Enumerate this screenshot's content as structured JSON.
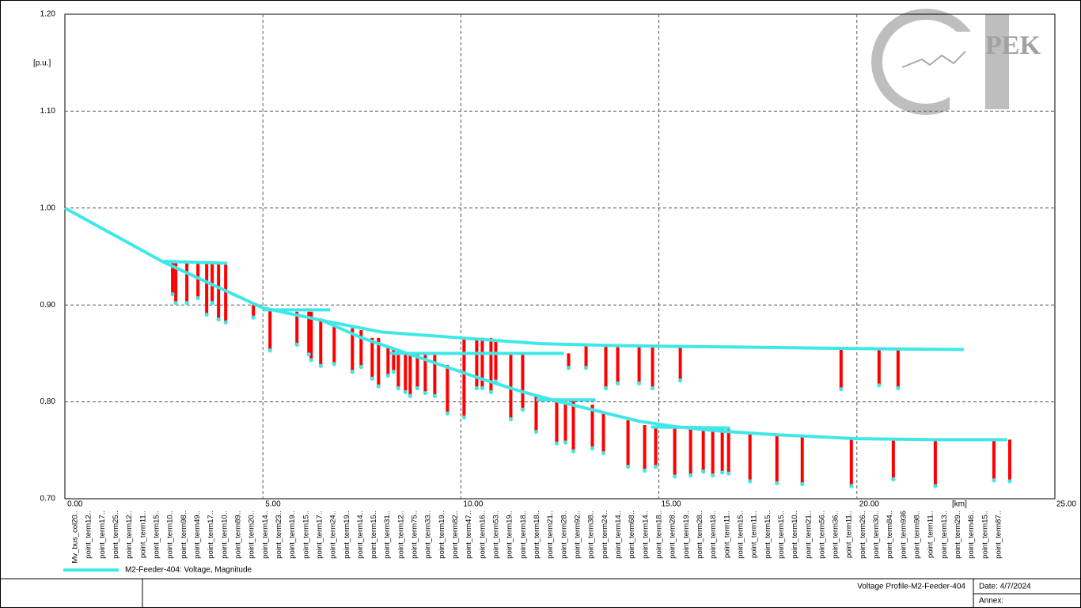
{
  "chart_data": {
    "type": "voltage-profile",
    "y_unit": "[p.u.]",
    "x_unit": "[km]",
    "xlim": [
      0,
      25
    ],
    "ylim": [
      0.7,
      1.2
    ],
    "xticks": [
      {
        "value": 0,
        "label": "0.00"
      },
      {
        "value": 5,
        "label": "5.00"
      },
      {
        "value": 10,
        "label": "10.00"
      },
      {
        "value": 15,
        "label": "15.00"
      },
      {
        "value": 20,
        "label": "20.00"
      },
      {
        "value": 25,
        "label": "25.00"
      }
    ],
    "yticks": [
      {
        "value": 0.7,
        "label": "0.70"
      },
      {
        "value": 0.8,
        "label": "0.80"
      },
      {
        "value": 0.9,
        "label": "0.90"
      },
      {
        "value": 1.0,
        "label": "1.00"
      },
      {
        "value": 1.1,
        "label": "1.10"
      },
      {
        "value": 1.2,
        "label": "1.20"
      }
    ],
    "grid": true,
    "series": [
      {
        "name": "M2-Feeder-404: Voltage, Magnitude",
        "color": "#3fe8e8",
        "x": [
          0,
          2.5,
          5.0,
          6.5,
          8.0,
          10.0,
          12.0,
          14.0,
          16.0,
          18.0,
          20.0,
          22.7,
          null,
          6.5,
          7.5,
          8.5,
          9.5,
          10.5,
          11.5,
          12.5,
          13.5,
          14.5,
          15.5,
          16.5,
          18.0,
          20.0,
          22.0,
          23.8,
          null,
          2.5,
          4.1,
          null,
          5.0,
          6.7,
          null,
          8.2,
          12.6,
          null,
          11.9,
          13.4,
          null,
          14.8,
          16.8
        ],
        "values": [
          1.0,
          0.944,
          0.897,
          0.884,
          0.872,
          0.866,
          0.86,
          0.858,
          0.857,
          0.856,
          0.855,
          0.854,
          null,
          0.884,
          0.866,
          0.852,
          0.838,
          0.824,
          0.811,
          0.8,
          0.79,
          0.78,
          0.774,
          0.77,
          0.766,
          0.762,
          0.761,
          0.761,
          null,
          0.945,
          0.943,
          null,
          0.895,
          0.895,
          null,
          0.85,
          0.85,
          null,
          0.802,
          0.802,
          null,
          0.774,
          0.773
        ]
      }
    ],
    "drops": {
      "color": "#ff0000",
      "x": [
        2.72,
        2.8,
        3.08,
        3.36,
        3.58,
        3.72,
        3.88,
        4.06,
        4.76,
        5.18,
        5.86,
        6.16,
        6.22,
        6.46,
        6.8,
        7.26,
        7.48,
        7.76,
        7.92,
        8.16,
        8.3,
        8.42,
        8.6,
        8.72,
        8.9,
        9.1,
        9.34,
        9.66,
        10.08,
        10.4,
        10.54,
        10.76,
        10.88,
        11.26,
        11.56,
        11.9,
        12.42,
        12.64,
        12.72,
        12.84,
        13.16,
        13.32,
        13.6,
        13.66,
        13.96,
        14.22,
        14.5,
        14.64,
        14.84,
        14.92,
        15.4,
        15.54,
        15.8,
        16.12,
        16.36,
        16.6,
        16.76,
        17.3,
        17.98,
        18.62,
        19.6,
        19.86,
        20.56,
        20.92,
        21.04,
        21.98,
        23.46,
        23.86
      ],
      "top": [
        0.943,
        0.943,
        0.943,
        0.943,
        0.943,
        0.943,
        0.943,
        0.943,
        0.9,
        0.896,
        0.893,
        0.893,
        0.893,
        0.886,
        0.879,
        0.876,
        0.874,
        0.866,
        0.866,
        0.858,
        0.856,
        0.852,
        0.85,
        0.85,
        0.85,
        0.85,
        0.85,
        0.838,
        0.866,
        0.866,
        0.866,
        0.866,
        0.862,
        0.85,
        0.85,
        0.806,
        0.802,
        0.802,
        0.85,
        0.802,
        0.859,
        0.797,
        0.79,
        0.858,
        0.858,
        0.781,
        0.858,
        0.776,
        0.858,
        0.775,
        0.774,
        0.857,
        0.774,
        0.773,
        0.773,
        0.772,
        0.772,
        0.768,
        0.766,
        0.765,
        0.855,
        0.763,
        0.855,
        0.762,
        0.855,
        0.761,
        0.761,
        0.761
      ],
      "bottom": [
        0.911,
        0.902,
        0.902,
        0.907,
        0.89,
        0.902,
        0.885,
        0.882,
        0.887,
        0.853,
        0.859,
        0.849,
        0.843,
        0.837,
        0.839,
        0.831,
        0.836,
        0.824,
        0.816,
        0.827,
        0.831,
        0.814,
        0.81,
        0.806,
        0.814,
        0.809,
        0.806,
        0.788,
        0.784,
        0.814,
        0.814,
        0.81,
        0.821,
        0.782,
        0.792,
        0.769,
        0.757,
        0.758,
        0.835,
        0.749,
        0.835,
        0.752,
        0.747,
        0.814,
        0.819,
        0.733,
        0.819,
        0.729,
        0.814,
        0.733,
        0.723,
        0.822,
        0.724,
        0.728,
        0.724,
        0.727,
        0.726,
        0.718,
        0.716,
        0.715,
        0.813,
        0.713,
        0.817,
        0.72,
        0.814,
        0.713,
        0.719,
        0.718
      ]
    },
    "x_labels": [
      "Mv_bus_col20..",
      "point_term12..",
      "point_term17..",
      "point_term25..",
      "point_term12..",
      "point_term11..",
      "point_term15..",
      "point_term10..",
      "point_term98..",
      "point_term49..",
      "point_term17..",
      "point_term10..",
      "point_term89..",
      "point_term20..",
      "point_term14..",
      "point_term23..",
      "point_term19..",
      "point_term15..",
      "point_term17..",
      "point_term24..",
      "point_term19..",
      "point_term14..",
      "point_term15..",
      "point_term31..",
      "point_term12..",
      "point_term75..",
      "point_term33..",
      "point_term19..",
      "point_term82..",
      "point_term47..",
      "point_term16..",
      "point_term53..",
      "point_term19..",
      "point_term18..",
      "point_term18..",
      "point_term21..",
      "point_term28..",
      "point_term92..",
      "point_term38..",
      "point_term24..",
      "point_term14..",
      "point_term68..",
      "point_term14..",
      "point_term18..",
      "point_term28..",
      "point_term19..",
      "point_term28..",
      "point_term18..",
      "point_term11..",
      "point_term15..",
      "point_term11..",
      "point_term15..",
      "point_term15..",
      "point_term10..",
      "point_term21..",
      "point_term56..",
      "point_term36..",
      "point_term11..",
      "point_term26..",
      "point_term30..",
      "point_term84..",
      "point_term936",
      "point_term98..",
      "point_term11..",
      "point_term13..",
      "point_term29..",
      "point_term46..",
      "point_term15..",
      "point_term87.."
    ]
  },
  "logo": "PEK",
  "footer": {
    "title": "Voltage Profile-M2-Feeder-404",
    "date": "Date: 4/7/2024",
    "annex": "Annex:"
  }
}
